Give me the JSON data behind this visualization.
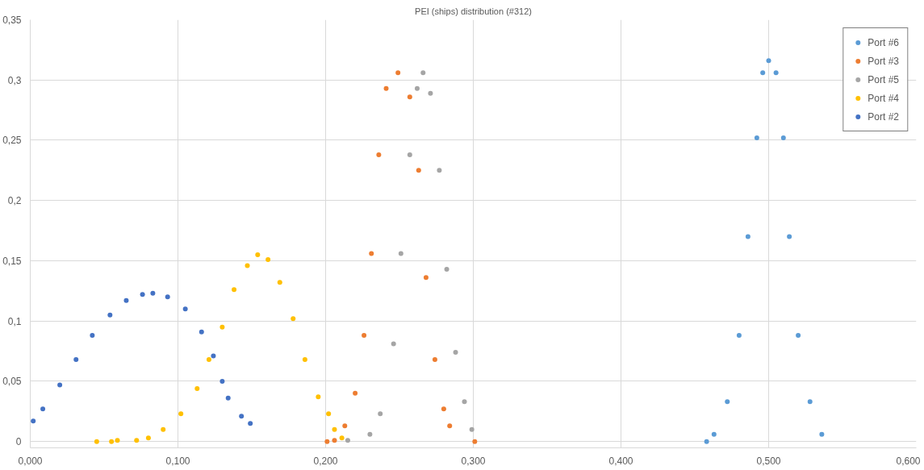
{
  "chart_data": {
    "type": "scatter",
    "title": "PEI (ships) distribution (#312)",
    "marker": "circle",
    "grid": true,
    "legend": "top right",
    "xlim": [
      0,
      0.6
    ],
    "ylim": [
      0,
      0.35
    ],
    "xticks": [
      {
        "value": 0,
        "label": "0,000"
      },
      {
        "value": 0.1,
        "label": "0,100"
      },
      {
        "value": 0.2,
        "label": "0,200"
      },
      {
        "value": 0.3,
        "label": "0,300"
      },
      {
        "value": 0.4,
        "label": "0,400"
      },
      {
        "value": 0.5,
        "label": "0,500"
      },
      {
        "value": 0.6,
        "label": "0,600"
      }
    ],
    "yticks": [
      0,
      {
        "value": 0.05,
        "label": "0,05"
      },
      {
        "value": 0.1,
        "label": "0,1"
      },
      {
        "value": 0.15,
        "label": "0,15"
      },
      {
        "value": 0.2,
        "label": "0,2"
      },
      {
        "value": 0.25,
        "label": "0,25"
      },
      {
        "value": 0.3,
        "label": "0,3"
      },
      {
        "value": 0.35,
        "label": "0,35"
      }
    ],
    "series": [
      {
        "name": "Port #6",
        "color": "#5b9bd5",
        "x": [
          0.458,
          0.463,
          0.472,
          0.48,
          0.486,
          0.492,
          0.496,
          0.5,
          0.505,
          0.51,
          0.514,
          0.52,
          0.528,
          0.536
        ],
        "values": [
          0.0,
          0.006,
          0.033,
          0.088,
          0.17,
          0.252,
          0.306,
          0.316,
          0.306,
          0.252,
          0.17,
          0.088,
          0.033,
          0.006
        ]
      },
      {
        "name": "Port #3",
        "color": "#ed7d31",
        "x": [
          0.201,
          0.206,
          0.213,
          0.22,
          0.226,
          0.231,
          0.236,
          0.241,
          0.249,
          0.257,
          0.263,
          0.268,
          0.274,
          0.28,
          0.284,
          0.301
        ],
        "values": [
          0.0,
          0.001,
          0.013,
          0.04,
          0.088,
          0.156,
          0.238,
          0.293,
          0.306,
          0.286,
          0.225,
          0.136,
          0.068,
          0.027,
          0.013,
          0.0
        ]
      },
      {
        "name": "Port #5",
        "color": "#a5a5a5",
        "x": [
          0.215,
          0.23,
          0.237,
          0.246,
          0.251,
          0.257,
          0.262,
          0.266,
          0.271,
          0.277,
          0.282,
          0.288,
          0.294,
          0.299
        ],
        "values": [
          0.001,
          0.006,
          0.023,
          0.081,
          0.156,
          0.238,
          0.293,
          0.306,
          0.289,
          0.225,
          0.143,
          0.074,
          0.033,
          0.01
        ]
      },
      {
        "name": "Port #4",
        "color": "#ffc000",
        "x": [
          0.045,
          0.055,
          0.059,
          0.072,
          0.08,
          0.09,
          0.102,
          0.113,
          0.121,
          0.13,
          0.138,
          0.147,
          0.154,
          0.161,
          0.169,
          0.178,
          0.186,
          0.195,
          0.202,
          0.206,
          0.211
        ],
        "values": [
          0.0,
          0.0,
          0.001,
          0.001,
          0.003,
          0.01,
          0.023,
          0.044,
          0.068,
          0.095,
          0.126,
          0.146,
          0.155,
          0.151,
          0.132,
          0.102,
          0.068,
          0.037,
          0.023,
          0.01,
          0.003
        ]
      },
      {
        "name": "Port #2",
        "color": "#4472c4",
        "x": [
          0.002,
          0.0085,
          0.02,
          0.031,
          0.042,
          0.054,
          0.065,
          0.076,
          0.083,
          0.093,
          0.105,
          0.116,
          0.124,
          0.13,
          0.134,
          0.143,
          0.149
        ],
        "values": [
          0.017,
          0.027,
          0.047,
          0.068,
          0.088,
          0.105,
          0.117,
          0.122,
          0.123,
          0.12,
          0.11,
          0.091,
          0.071,
          0.05,
          0.036,
          0.021,
          0.015
        ]
      }
    ]
  }
}
